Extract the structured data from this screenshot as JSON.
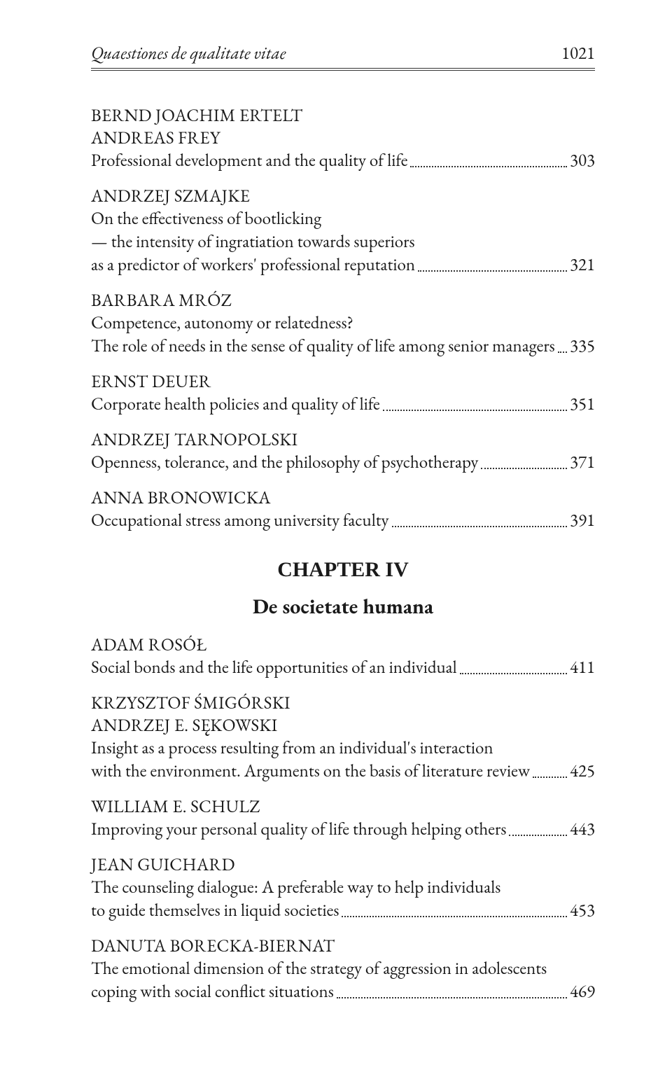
{
  "header": {
    "running_title": "Quaestiones de qualitate vitae",
    "page_number": "1021"
  },
  "chapter": {
    "label": "CHAPTER IV",
    "subtitle": "De societate humana",
    "insert_after_index": 5
  },
  "entries": [
    {
      "authors": [
        "BERND JOACHIM ERTELT",
        "ANDREAS FREY"
      ],
      "title_lines": [
        "Professional development and the quality of life"
      ],
      "page": "303"
    },
    {
      "authors": [
        "ANDRZEJ SZMAJKE"
      ],
      "title_lines": [
        "On the effectiveness of bootlicking",
        "— the intensity of ingratiation towards superiors",
        "as a predictor of workers' professional reputation"
      ],
      "page": "321"
    },
    {
      "authors": [
        "BARBARA MRÓZ"
      ],
      "title_lines": [
        "Competence, autonomy or relatedness?",
        "The role of needs in the sense of quality of life among senior managers"
      ],
      "page": "335"
    },
    {
      "authors": [
        "ERNST DEUER"
      ],
      "title_lines": [
        "Corporate health policies and quality of life"
      ],
      "page": "351"
    },
    {
      "authors": [
        "ANDRZEJ TARNOPOLSKI"
      ],
      "title_lines": [
        "Openness, tolerance, and the philosophy of psychotherapy"
      ],
      "page": "371"
    },
    {
      "authors": [
        "ANNA BRONOWICKA"
      ],
      "title_lines": [
        "Occupational stress among university faculty"
      ],
      "page": "391"
    },
    {
      "authors": [
        "ADAM ROSÓŁ"
      ],
      "title_lines": [
        "Social bonds and the life opportunities of an individual"
      ],
      "page": "411"
    },
    {
      "authors": [
        "KRZYSZTOF ŚMIGÓRSKI",
        "ANDRZEJ E. SĘKOWSKI"
      ],
      "title_lines": [
        "Insight as a process resulting from an individual's interaction",
        "with the environment. Arguments on the basis of literature review"
      ],
      "page": "425"
    },
    {
      "authors": [
        "WILLIAM E. SCHULZ"
      ],
      "title_lines": [
        "Improving your personal quality of life through helping others"
      ],
      "page": "443"
    },
    {
      "authors": [
        "JEAN GUICHARD"
      ],
      "title_lines": [
        "The counseling dialogue: A preferable way to help individuals",
        "to guide themselves in liquid societies"
      ],
      "page": "453"
    },
    {
      "authors": [
        "DANUTA BORECKA-BIERNAT"
      ],
      "title_lines": [
        "The emotional dimension of the strategy of aggression in adolescents",
        "coping with social conflict situations"
      ],
      "page": "469"
    }
  ]
}
